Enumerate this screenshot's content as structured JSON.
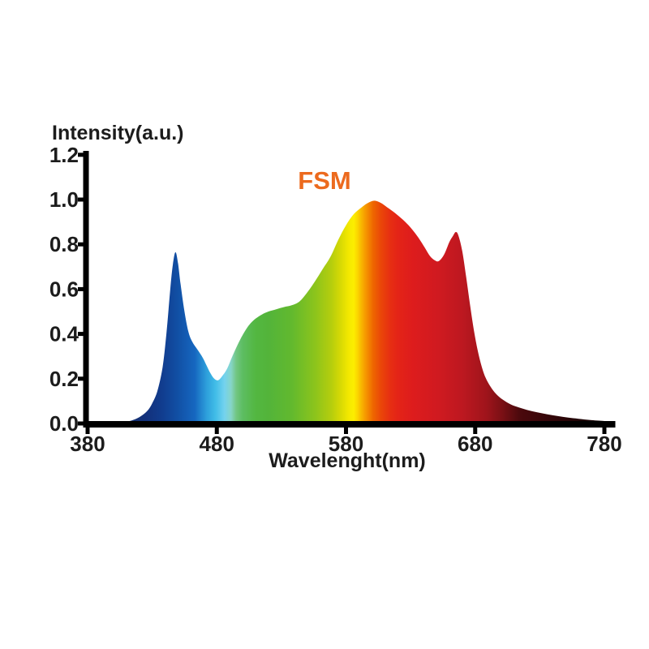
{
  "page": {
    "background": "#ffffff"
  },
  "chart_data": {
    "type": "area",
    "title": "FSM",
    "title_color": "#EC6A1E",
    "xlabel": "Wavelenght(nm)",
    "ylabel": "Intensity(a.u.)",
    "axis_color": "#000000",
    "text_color": "#1c1c1c",
    "grid": false,
    "legend_position": "none",
    "xlim": [
      380,
      780
    ],
    "ylim": [
      0.0,
      1.2
    ],
    "x_ticks": [
      "380",
      "480",
      "580",
      "680",
      "780"
    ],
    "y_ticks": [
      "0.0",
      "0.2",
      "0.4",
      "0.6",
      "0.8",
      "1.0",
      "1.2"
    ],
    "series": [
      {
        "name": "FSM",
        "fill": "wavelength-spectrum-gradient",
        "points": [
          [
            395,
            0
          ],
          [
            402,
            0.003
          ],
          [
            408,
            0.007
          ],
          [
            414,
            0.013
          ],
          [
            420,
            0.028
          ],
          [
            426,
            0.055
          ],
          [
            430,
            0.09
          ],
          [
            434,
            0.145
          ],
          [
            438,
            0.25
          ],
          [
            441,
            0.4
          ],
          [
            444,
            0.6
          ],
          [
            446,
            0.71
          ],
          [
            448,
            0.765
          ],
          [
            450,
            0.715
          ],
          [
            452,
            0.62
          ],
          [
            455,
            0.5
          ],
          [
            458,
            0.41
          ],
          [
            461,
            0.365
          ],
          [
            465,
            0.33
          ],
          [
            469,
            0.295
          ],
          [
            472,
            0.26
          ],
          [
            475,
            0.225
          ],
          [
            478,
            0.2
          ],
          [
            481,
            0.193
          ],
          [
            484,
            0.21
          ],
          [
            488,
            0.245
          ],
          [
            492,
            0.3
          ],
          [
            496,
            0.35
          ],
          [
            500,
            0.395
          ],
          [
            505,
            0.44
          ],
          [
            510,
            0.468
          ],
          [
            515,
            0.487
          ],
          [
            520,
            0.5
          ],
          [
            526,
            0.51
          ],
          [
            532,
            0.52
          ],
          [
            538,
            0.528
          ],
          [
            544,
            0.545
          ],
          [
            550,
            0.585
          ],
          [
            556,
            0.635
          ],
          [
            562,
            0.69
          ],
          [
            568,
            0.745
          ],
          [
            574,
            0.82
          ],
          [
            580,
            0.885
          ],
          [
            586,
            0.935
          ],
          [
            592,
            0.965
          ],
          [
            597,
            0.985
          ],
          [
            602,
            0.995
          ],
          [
            607,
            0.985
          ],
          [
            612,
            0.965
          ],
          [
            618,
            0.94
          ],
          [
            624,
            0.91
          ],
          [
            630,
            0.875
          ],
          [
            636,
            0.83
          ],
          [
            641,
            0.785
          ],
          [
            645,
            0.748
          ],
          [
            649,
            0.728
          ],
          [
            652,
            0.726
          ],
          [
            656,
            0.755
          ],
          [
            660,
            0.81
          ],
          [
            663,
            0.84
          ],
          [
            665,
            0.855
          ],
          [
            667,
            0.84
          ],
          [
            670,
            0.77
          ],
          [
            673,
            0.655
          ],
          [
            676,
            0.53
          ],
          [
            679,
            0.415
          ],
          [
            682,
            0.325
          ],
          [
            685,
            0.255
          ],
          [
            688,
            0.205
          ],
          [
            692,
            0.163
          ],
          [
            696,
            0.133
          ],
          [
            700,
            0.112
          ],
          [
            706,
            0.09
          ],
          [
            712,
            0.075
          ],
          [
            720,
            0.061
          ],
          [
            728,
            0.05
          ],
          [
            736,
            0.041
          ],
          [
            744,
            0.033
          ],
          [
            752,
            0.026
          ],
          [
            760,
            0.021
          ],
          [
            770,
            0.015
          ],
          [
            780,
            0.011
          ]
        ]
      }
    ],
    "gradient_stops": [
      {
        "nm": 395,
        "color": "#1e2747"
      },
      {
        "nm": 412,
        "color": "#15306f"
      },
      {
        "nm": 425,
        "color": "#12317c"
      },
      {
        "nm": 438,
        "color": "#113d8f"
      },
      {
        "nm": 450,
        "color": "#1150a5"
      },
      {
        "nm": 463,
        "color": "#1667c0"
      },
      {
        "nm": 472,
        "color": "#2d9fdb"
      },
      {
        "nm": 479,
        "color": "#41bde8"
      },
      {
        "nm": 486,
        "color": "#74d2ee"
      },
      {
        "nm": 491,
        "color": "#86d5c8"
      },
      {
        "nm": 495,
        "color": "#72c683"
      },
      {
        "nm": 500,
        "color": "#5dbd62"
      },
      {
        "nm": 510,
        "color": "#53b741"
      },
      {
        "nm": 520,
        "color": "#53b43a"
      },
      {
        "nm": 538,
        "color": "#62b92e"
      },
      {
        "nm": 556,
        "color": "#8cc41c"
      },
      {
        "nm": 569,
        "color": "#b6ce0d"
      },
      {
        "nm": 576,
        "color": "#d8da04"
      },
      {
        "nm": 582,
        "color": "#f3e800"
      },
      {
        "nm": 586,
        "color": "#fcee00"
      },
      {
        "nm": 589,
        "color": "#fbd500"
      },
      {
        "nm": 592,
        "color": "#f8b500"
      },
      {
        "nm": 595,
        "color": "#f69900"
      },
      {
        "nm": 598,
        "color": "#f28000"
      },
      {
        "nm": 601,
        "color": "#ee6600"
      },
      {
        "nm": 607,
        "color": "#ea4708"
      },
      {
        "nm": 614,
        "color": "#e72f12"
      },
      {
        "nm": 620,
        "color": "#e42417"
      },
      {
        "nm": 632,
        "color": "#dd1c1d"
      },
      {
        "nm": 651,
        "color": "#d01a20"
      },
      {
        "nm": 670,
        "color": "#bd1820"
      },
      {
        "nm": 689,
        "color": "#9e141b"
      },
      {
        "nm": 701,
        "color": "#7a1015"
      },
      {
        "nm": 714,
        "color": "#4c090d"
      },
      {
        "nm": 739,
        "color": "#330609"
      },
      {
        "nm": 764,
        "color": "#1d0305"
      },
      {
        "nm": 780,
        "color": "#0f0102"
      }
    ]
  }
}
